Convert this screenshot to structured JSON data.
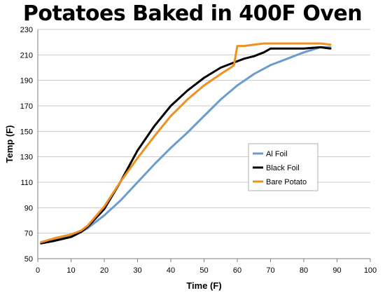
{
  "chart_data": {
    "type": "line",
    "title": "Potatoes Baked in 400F Oven",
    "xlabel": "Time (F)",
    "ylabel": "Temp (F)",
    "xlim": [
      0,
      100
    ],
    "ylim": [
      50,
      230
    ],
    "x_ticks": [
      0,
      10,
      20,
      30,
      40,
      50,
      60,
      70,
      80,
      90,
      100
    ],
    "y_ticks": [
      50,
      70,
      90,
      110,
      130,
      150,
      170,
      190,
      210,
      230
    ],
    "grid": "horizontal",
    "legend_position": "center-right",
    "series": [
      {
        "name": "Al Foil",
        "color": "#6B9BD1",
        "points": [
          [
            1,
            63
          ],
          [
            5,
            65
          ],
          [
            10,
            68
          ],
          [
            13,
            71
          ],
          [
            15,
            74
          ],
          [
            20,
            84
          ],
          [
            25,
            96
          ],
          [
            30,
            110
          ],
          [
            35,
            124
          ],
          [
            40,
            137
          ],
          [
            45,
            149
          ],
          [
            50,
            162
          ],
          [
            55,
            175
          ],
          [
            60,
            186
          ],
          [
            65,
            195
          ],
          [
            70,
            202
          ],
          [
            75,
            207
          ],
          [
            80,
            212
          ],
          [
            85,
            216
          ],
          [
            88,
            216
          ]
        ]
      },
      {
        "name": "Black Foil",
        "color": "#000000",
        "points": [
          [
            1,
            62
          ],
          [
            5,
            64
          ],
          [
            10,
            67
          ],
          [
            13,
            71
          ],
          [
            15,
            75
          ],
          [
            20,
            89
          ],
          [
            25,
            111
          ],
          [
            30,
            135
          ],
          [
            35,
            154
          ],
          [
            40,
            170
          ],
          [
            45,
            182
          ],
          [
            50,
            192
          ],
          [
            55,
            200
          ],
          [
            60,
            205
          ],
          [
            62,
            207
          ],
          [
            65,
            209
          ],
          [
            68,
            212
          ],
          [
            70,
            215
          ],
          [
            75,
            215
          ],
          [
            80,
            215
          ],
          [
            85,
            216
          ],
          [
            88,
            215
          ]
        ]
      },
      {
        "name": "Bare Potato",
        "color": "#F0901E",
        "points": [
          [
            1,
            63
          ],
          [
            5,
            66
          ],
          [
            10,
            69
          ],
          [
            13,
            72
          ],
          [
            15,
            76
          ],
          [
            20,
            91
          ],
          [
            25,
            111
          ],
          [
            30,
            129
          ],
          [
            35,
            146
          ],
          [
            40,
            162
          ],
          [
            45,
            175
          ],
          [
            50,
            186
          ],
          [
            55,
            195
          ],
          [
            58,
            200
          ],
          [
            59,
            202
          ],
          [
            60,
            217
          ],
          [
            62,
            217
          ],
          [
            65,
            218
          ],
          [
            68,
            219
          ],
          [
            75,
            219
          ],
          [
            80,
            219
          ],
          [
            85,
            219
          ],
          [
            88,
            218
          ]
        ]
      }
    ]
  }
}
